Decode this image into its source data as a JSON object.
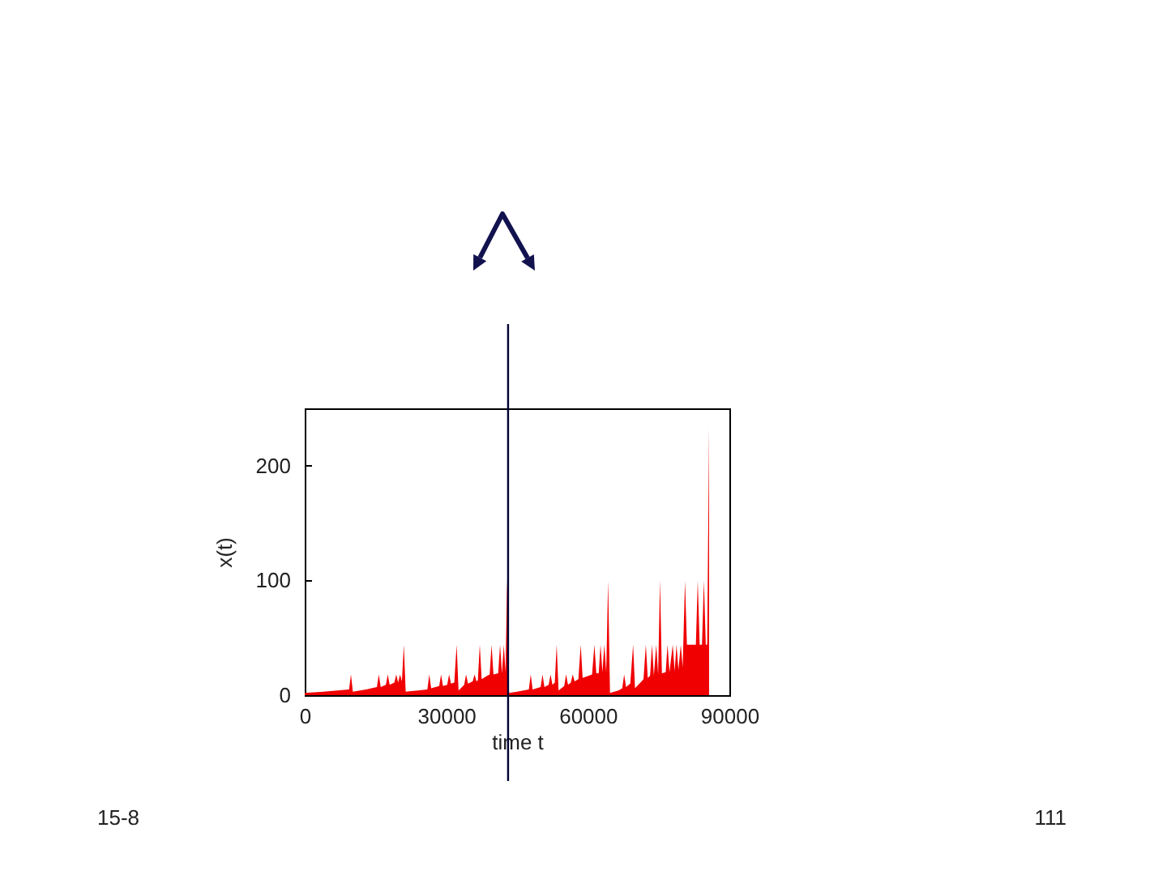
{
  "chart_data": {
    "type": "area",
    "xlabel": "time t",
    "ylabel": "x(t)",
    "color": "#f00000",
    "x": [
      0,
      4000,
      9400,
      9800,
      10200,
      13000,
      15300,
      15700,
      16100,
      17200,
      17600,
      18000,
      19000,
      19400,
      19800,
      20200,
      20600,
      21000,
      21400,
      24000,
      26000,
      26400,
      26800,
      28500,
      28900,
      29300,
      30200,
      30600,
      31000,
      31700,
      32200,
      32600,
      33800,
      34200,
      34600,
      35600,
      36000,
      36400,
      36700,
      37100,
      37500,
      38700,
      39200,
      39600,
      40000,
      41000,
      41400,
      41800,
      42200,
      42550,
      42900,
      43300,
      45000,
      47500,
      47900,
      48300,
      50000,
      50400,
      50800,
      51700,
      52100,
      52500,
      53000,
      53400,
      53800,
      55000,
      55400,
      55800,
      56400,
      56800,
      57200,
      58000,
      58500,
      58900,
      60900,
      61400,
      61800,
      62300,
      62700,
      63100,
      63500,
      63900,
      64300,
      64700,
      66500,
      67300,
      67700,
      68100,
      69000,
      69600,
      70000,
      71400,
      71800,
      72300,
      72700,
      73200,
      73600,
      74000,
      74500,
      74900,
      75300,
      75700,
      76500,
      76900,
      77300,
      78000,
      78400,
      78800,
      79200,
      79700,
      80100,
      80600,
      81000,
      82900,
      83300,
      83700,
      84200,
      84600,
      85000,
      85300,
      85700
    ],
    "values": [
      2,
      3,
      5,
      18,
      3,
      5,
      7,
      18,
      7,
      9,
      18,
      9,
      11,
      18,
      11,
      18,
      12,
      44,
      3,
      4,
      5,
      18,
      6,
      8,
      18,
      8,
      9,
      18,
      10,
      11,
      44,
      4,
      9,
      18,
      10,
      12,
      18,
      12,
      13,
      44,
      14,
      17,
      18,
      44,
      18,
      19,
      44,
      19,
      44,
      20,
      100,
      2,
      3,
      5,
      18,
      5,
      7,
      18,
      7,
      9,
      18,
      9,
      11,
      44,
      4,
      8,
      18,
      9,
      11,
      18,
      12,
      14,
      44,
      15,
      18,
      44,
      19,
      19,
      44,
      20,
      44,
      20,
      100,
      2,
      4,
      6,
      18,
      7,
      10,
      44,
      6,
      12,
      14,
      44,
      15,
      17,
      44,
      17,
      44,
      18,
      100,
      19,
      20,
      44,
      20,
      44,
      21,
      44,
      22,
      44,
      24,
      100,
      44,
      44,
      100,
      44,
      44,
      100,
      44,
      44,
      233
    ],
    "xlim": [
      0,
      90000
    ],
    "ylim": [
      0,
      250
    ],
    "xticks": [
      0,
      30000,
      60000,
      90000
    ],
    "yticks": [
      0,
      100,
      200
    ],
    "ref_lines": [
      {
        "axis": "x",
        "value": 43100,
        "color": "#000033"
      }
    ],
    "annotations": [
      "15-8",
      "111"
    ]
  }
}
